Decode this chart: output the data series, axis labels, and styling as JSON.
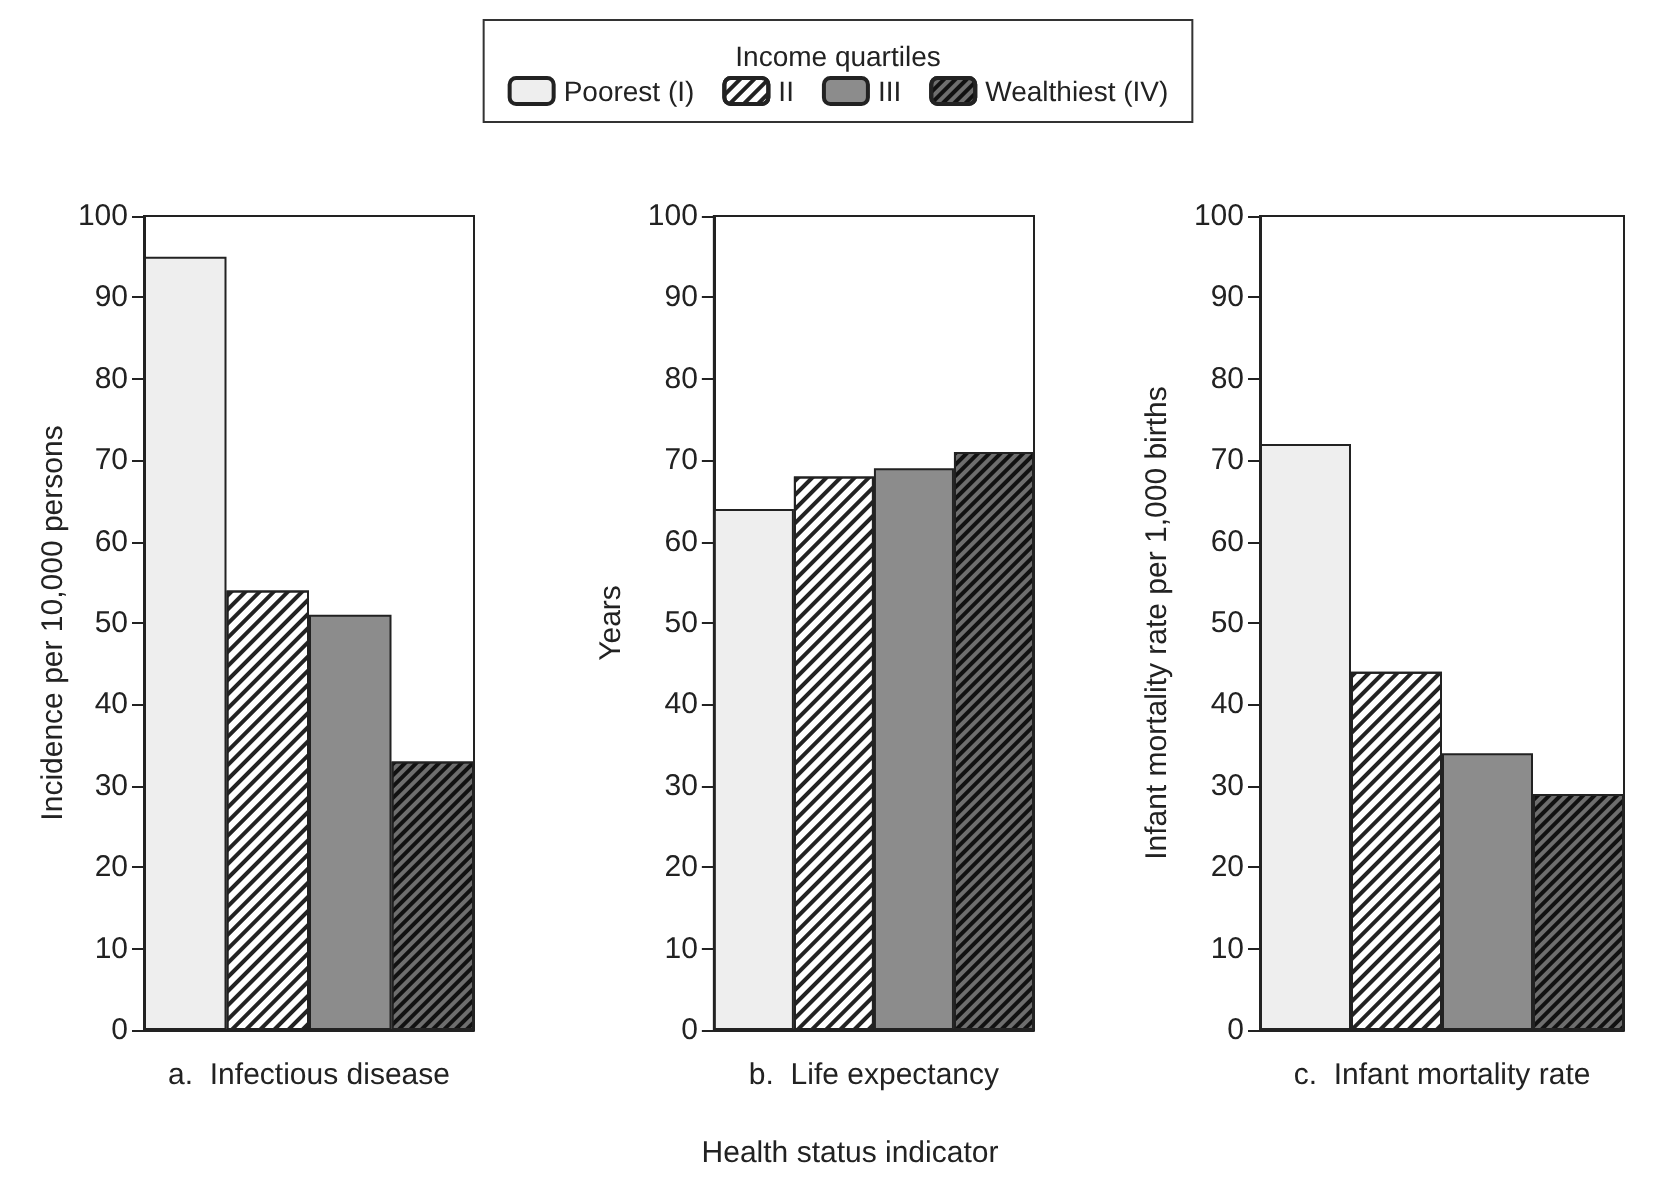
{
  "chart_data": [
    {
      "type": "bar",
      "categories": [
        null,
        null,
        null,
        null
      ],
      "xlabel": "a.  Infectious disease",
      "ylabel": "Incidence per 10,000 persons",
      "legend": "top",
      "legend_title": "Income quartiles",
      "grid": false,
      "series": [
        {
          "name": "Poorest (I)",
          "color": "#eeeeee",
          "values": [
            95,
            null,
            null,
            null
          ]
        },
        {
          "name": "II",
          "color": "#ffffff",
          "values": [
            null,
            54,
            null,
            null
          ]
        },
        {
          "name": "III",
          "color": "#8c8c8c",
          "values": [
            null,
            null,
            51,
            null
          ]
        },
        {
          "name": "Wealthiest (IV)",
          "color": "#6e6e6e",
          "values": [
            null,
            null,
            null,
            33
          ]
        }
      ],
      "ylim": [
        0,
        100
      ],
      "yticks": [
        0,
        10,
        20,
        30,
        40,
        50,
        60,
        70,
        80,
        90,
        100
      ]
    },
    {
      "type": "bar",
      "categories": [
        null,
        null,
        null,
        null
      ],
      "xlabel": "b.  Life expectancy",
      "ylabel": "Years",
      "annotations": [
        "Health status indicator"
      ],
      "grid": false,
      "series": [
        {
          "color": "#eeeeee",
          "values": [
            64,
            null,
            null,
            null
          ]
        },
        {
          "color": "#ffffff",
          "values": [
            null,
            68,
            null,
            null
          ]
        },
        {
          "color": "#8c8c8c",
          "values": [
            null,
            null,
            69,
            null
          ]
        },
        {
          "color": "#6e6e6e",
          "values": [
            null,
            null,
            null,
            71
          ]
        }
      ],
      "ylim": [
        0,
        100
      ],
      "yticks": [
        0,
        10,
        20,
        30,
        40,
        50,
        60,
        70,
        80,
        90,
        100
      ]
    },
    {
      "type": "bar",
      "categories": [
        null,
        null,
        null,
        null
      ],
      "xlabel": "c.  Infant mortality rate",
      "ylabel": "Infant mortality rate per 1,000 births",
      "grid": false,
      "series": [
        {
          "color": "#eeeeee",
          "values": [
            72,
            null,
            null,
            null
          ]
        },
        {
          "color": "#ffffff",
          "values": [
            null,
            44,
            null,
            null
          ]
        },
        {
          "color": "#8c8c8c",
          "values": [
            null,
            null,
            34,
            null
          ]
        },
        {
          "color": "#6e6e6e",
          "values": [
            null,
            null,
            null,
            29
          ]
        }
      ],
      "ylim": [
        0,
        100
      ],
      "yticks": [
        0,
        10,
        20,
        30,
        40,
        50,
        60,
        70,
        80,
        90,
        100
      ]
    }
  ]
}
